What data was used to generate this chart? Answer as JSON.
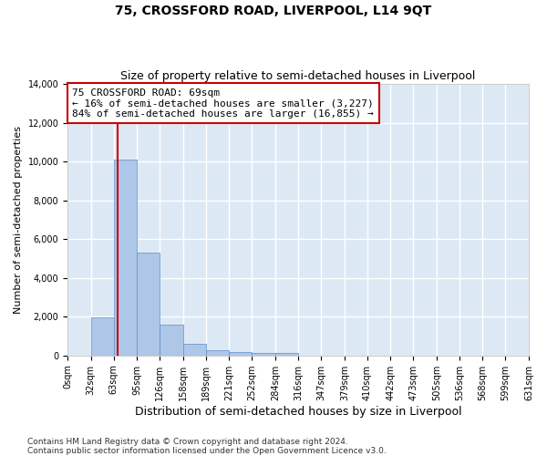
{
  "title": "75, CROSSFORD ROAD, LIVERPOOL, L14 9QT",
  "subtitle": "Size of property relative to semi-detached houses in Liverpool",
  "xlabel": "Distribution of semi-detached houses by size in Liverpool",
  "ylabel": "Number of semi-detached properties",
  "bar_color": "#aec6e8",
  "bar_edge_color": "#5b8fc9",
  "background_color": "#dde8f5",
  "grid_color": "#ffffff",
  "annotation_line1": "75 CROSSFORD ROAD: 69sqm",
  "annotation_line2": "← 16% of semi-detached houses are smaller (3,227)",
  "annotation_line3": "84% of semi-detached houses are larger (16,855) →",
  "property_sqm": 69,
  "property_line_color": "#cc0000",
  "annotation_box_color": "#ffffff",
  "annotation_box_edge": "#cc0000",
  "bin_edges": [
    0,
    32,
    63,
    95,
    126,
    158,
    189,
    221,
    252,
    284,
    316,
    347,
    379,
    410,
    442,
    473,
    505,
    536,
    568,
    599,
    631
  ],
  "bin_counts": [
    0,
    1950,
    10100,
    5300,
    1600,
    620,
    290,
    190,
    150,
    110,
    0,
    0,
    0,
    0,
    0,
    0,
    0,
    0,
    0,
    0
  ],
  "tick_labels": [
    "0sqm",
    "32sqm",
    "63sqm",
    "95sqm",
    "126sqm",
    "158sqm",
    "189sqm",
    "221sqm",
    "252sqm",
    "284sqm",
    "316sqm",
    "347sqm",
    "379sqm",
    "410sqm",
    "442sqm",
    "473sqm",
    "505sqm",
    "536sqm",
    "568sqm",
    "599sqm",
    "631sqm"
  ],
  "ylim": [
    0,
    14000
  ],
  "yticks": [
    0,
    2000,
    4000,
    6000,
    8000,
    10000,
    12000,
    14000
  ],
  "footer_text": "Contains HM Land Registry data © Crown copyright and database right 2024.\nContains public sector information licensed under the Open Government Licence v3.0.",
  "title_fontsize": 10,
  "subtitle_fontsize": 9,
  "xlabel_fontsize": 9,
  "ylabel_fontsize": 8,
  "tick_fontsize": 7,
  "annotation_fontsize": 8,
  "footer_fontsize": 6.5
}
